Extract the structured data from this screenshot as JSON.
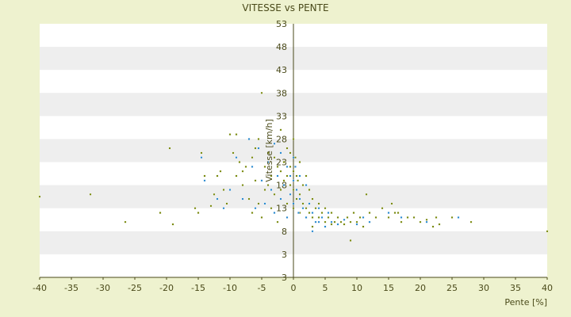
{
  "chart_data": {
    "type": "scatter",
    "title": "VITESSE vs PENTE",
    "xlabel": "Pente [%]",
    "ylabel": "Vitesse [km/h]",
    "xlim": [
      -40,
      40
    ],
    "ylim": [
      -2,
      53
    ],
    "grid": "horizontal bands",
    "legend": "none",
    "x_ticks": [
      "-40",
      "-35",
      "-30",
      "-25",
      "-20",
      "-15",
      "-10",
      "-5",
      "0",
      "5",
      "10",
      "15",
      "20",
      "25",
      "30",
      "35",
      "40"
    ],
    "y_ticks": [
      "3",
      "3",
      "8",
      "13",
      "18",
      "23",
      "28",
      "33",
      "38",
      "43",
      "48",
      "53"
    ],
    "colors": {
      "series_a": "#7a8a10",
      "series_b": "#2a8ad0",
      "axis": "#4a4a1a",
      "band": "#eeeeee"
    },
    "series": [
      {
        "color": "#7a8a10",
        "points": [
          [
            -40,
            15.5
          ],
          [
            -32,
            16
          ],
          [
            -26.5,
            10
          ],
          [
            -21,
            12
          ],
          [
            -19.5,
            26
          ],
          [
            -19,
            9.5
          ],
          [
            -15.5,
            13
          ],
          [
            -15,
            12
          ],
          [
            -14.5,
            25
          ],
          [
            -14,
            20
          ],
          [
            -13,
            13.5
          ],
          [
            -12.5,
            16
          ],
          [
            -12,
            20
          ],
          [
            -11.5,
            21
          ],
          [
            -11,
            17
          ],
          [
            -10.5,
            14
          ],
          [
            -10,
            29
          ],
          [
            -9.5,
            25
          ],
          [
            -9,
            29
          ],
          [
            -9,
            20
          ],
          [
            -8.5,
            23
          ],
          [
            -8,
            21
          ],
          [
            -8,
            18
          ],
          [
            -7.5,
            22
          ],
          [
            -7,
            15
          ],
          [
            -7,
            28
          ],
          [
            -6.5,
            24
          ],
          [
            -6.5,
            12
          ],
          [
            -6,
            19
          ],
          [
            -6,
            26
          ],
          [
            -5.5,
            28
          ],
          [
            -5.5,
            14
          ],
          [
            -5,
            38
          ],
          [
            -5,
            11
          ],
          [
            -4.5,
            17
          ],
          [
            -4.5,
            22
          ],
          [
            -4,
            18
          ],
          [
            -4,
            25
          ],
          [
            -3.5,
            13
          ],
          [
            -3.5,
            20
          ],
          [
            -3,
            16
          ],
          [
            -3,
            24
          ],
          [
            -2.5,
            22
          ],
          [
            -2.5,
            10
          ],
          [
            -2,
            21
          ],
          [
            -2,
            17
          ],
          [
            -2,
            30
          ],
          [
            -1.5,
            19
          ],
          [
            -1.5,
            23
          ],
          [
            -1,
            26
          ],
          [
            -1,
            20
          ],
          [
            -1,
            14
          ],
          [
            -0.5,
            22
          ],
          [
            -0.5,
            18
          ],
          [
            -0.5,
            25
          ],
          [
            0,
            28
          ],
          [
            0,
            21
          ],
          [
            0,
            17
          ],
          [
            0,
            13
          ],
          [
            0.3,
            24
          ],
          [
            0.5,
            20
          ],
          [
            0.5,
            15
          ],
          [
            0.7,
            19
          ],
          [
            1,
            23
          ],
          [
            1,
            16
          ],
          [
            1,
            12
          ],
          [
            1.5,
            18
          ],
          [
            1.5,
            14
          ],
          [
            2,
            20
          ],
          [
            2,
            13
          ],
          [
            2,
            11
          ],
          [
            2.5,
            17
          ],
          [
            2.5,
            12
          ],
          [
            3,
            15
          ],
          [
            3,
            11
          ],
          [
            3,
            9
          ],
          [
            3.5,
            13
          ],
          [
            3.5,
            10
          ],
          [
            4,
            14
          ],
          [
            4,
            11
          ],
          [
            4.5,
            12
          ],
          [
            5,
            10
          ],
          [
            5,
            13
          ],
          [
            5.5,
            11
          ],
          [
            6,
            12
          ],
          [
            6,
            9.5
          ],
          [
            6.5,
            10
          ],
          [
            7,
            11
          ],
          [
            7.5,
            10
          ],
          [
            8,
            9.5
          ],
          [
            8.5,
            11
          ],
          [
            9,
            10
          ],
          [
            9,
            6
          ],
          [
            9.5,
            12
          ],
          [
            10,
            10
          ],
          [
            10.5,
            11
          ],
          [
            11,
            9
          ],
          [
            11.5,
            16
          ],
          [
            12,
            10
          ],
          [
            12,
            12
          ],
          [
            13,
            11
          ],
          [
            14,
            13
          ],
          [
            15,
            11
          ],
          [
            15.5,
            14
          ],
          [
            16,
            12
          ],
          [
            16.5,
            12
          ],
          [
            17,
            10
          ],
          [
            18,
            11
          ],
          [
            19,
            11
          ],
          [
            20,
            10
          ],
          [
            21,
            10.5
          ],
          [
            22,
            9
          ],
          [
            22.5,
            11
          ],
          [
            23,
            9.5
          ],
          [
            25,
            11
          ],
          [
            28,
            10
          ],
          [
            40,
            8
          ]
        ]
      },
      {
        "color": "#2a8ad0",
        "points": [
          [
            -14.5,
            24
          ],
          [
            -14,
            19
          ],
          [
            -12,
            15
          ],
          [
            -11,
            13
          ],
          [
            -10,
            17
          ],
          [
            -9,
            24
          ],
          [
            -8,
            15
          ],
          [
            -7,
            28
          ],
          [
            -6.5,
            22
          ],
          [
            -6,
            13
          ],
          [
            -5.5,
            26
          ],
          [
            -5,
            19
          ],
          [
            -4.5,
            14
          ],
          [
            -4,
            23
          ],
          [
            -3.5,
            17
          ],
          [
            -3,
            27
          ],
          [
            -3,
            12
          ],
          [
            -2.5,
            20
          ],
          [
            -2,
            15
          ],
          [
            -2,
            25
          ],
          [
            -1.5,
            18
          ],
          [
            -1,
            22
          ],
          [
            -1,
            11
          ],
          [
            -0.5,
            16
          ],
          [
            -0.5,
            20
          ],
          [
            0,
            24
          ],
          [
            0,
            19
          ],
          [
            0,
            14
          ],
          [
            0.3,
            22
          ],
          [
            0.5,
            17
          ],
          [
            0.8,
            12
          ],
          [
            1,
            20
          ],
          [
            1,
            15
          ],
          [
            1.5,
            13
          ],
          [
            2,
            18
          ],
          [
            2,
            11
          ],
          [
            2.5,
            14
          ],
          [
            3,
            12
          ],
          [
            3,
            8
          ],
          [
            3.5,
            10
          ],
          [
            4,
            13
          ],
          [
            4,
            10
          ],
          [
            4.5,
            11
          ],
          [
            5,
            9
          ],
          [
            5.5,
            12
          ],
          [
            6,
            10
          ],
          [
            7,
            9.5
          ],
          [
            8,
            10.5
          ],
          [
            10,
            9.5
          ],
          [
            11,
            11
          ],
          [
            12,
            10
          ],
          [
            15,
            12
          ],
          [
            17,
            11
          ],
          [
            21,
            10
          ],
          [
            26,
            11
          ]
        ]
      }
    ]
  }
}
